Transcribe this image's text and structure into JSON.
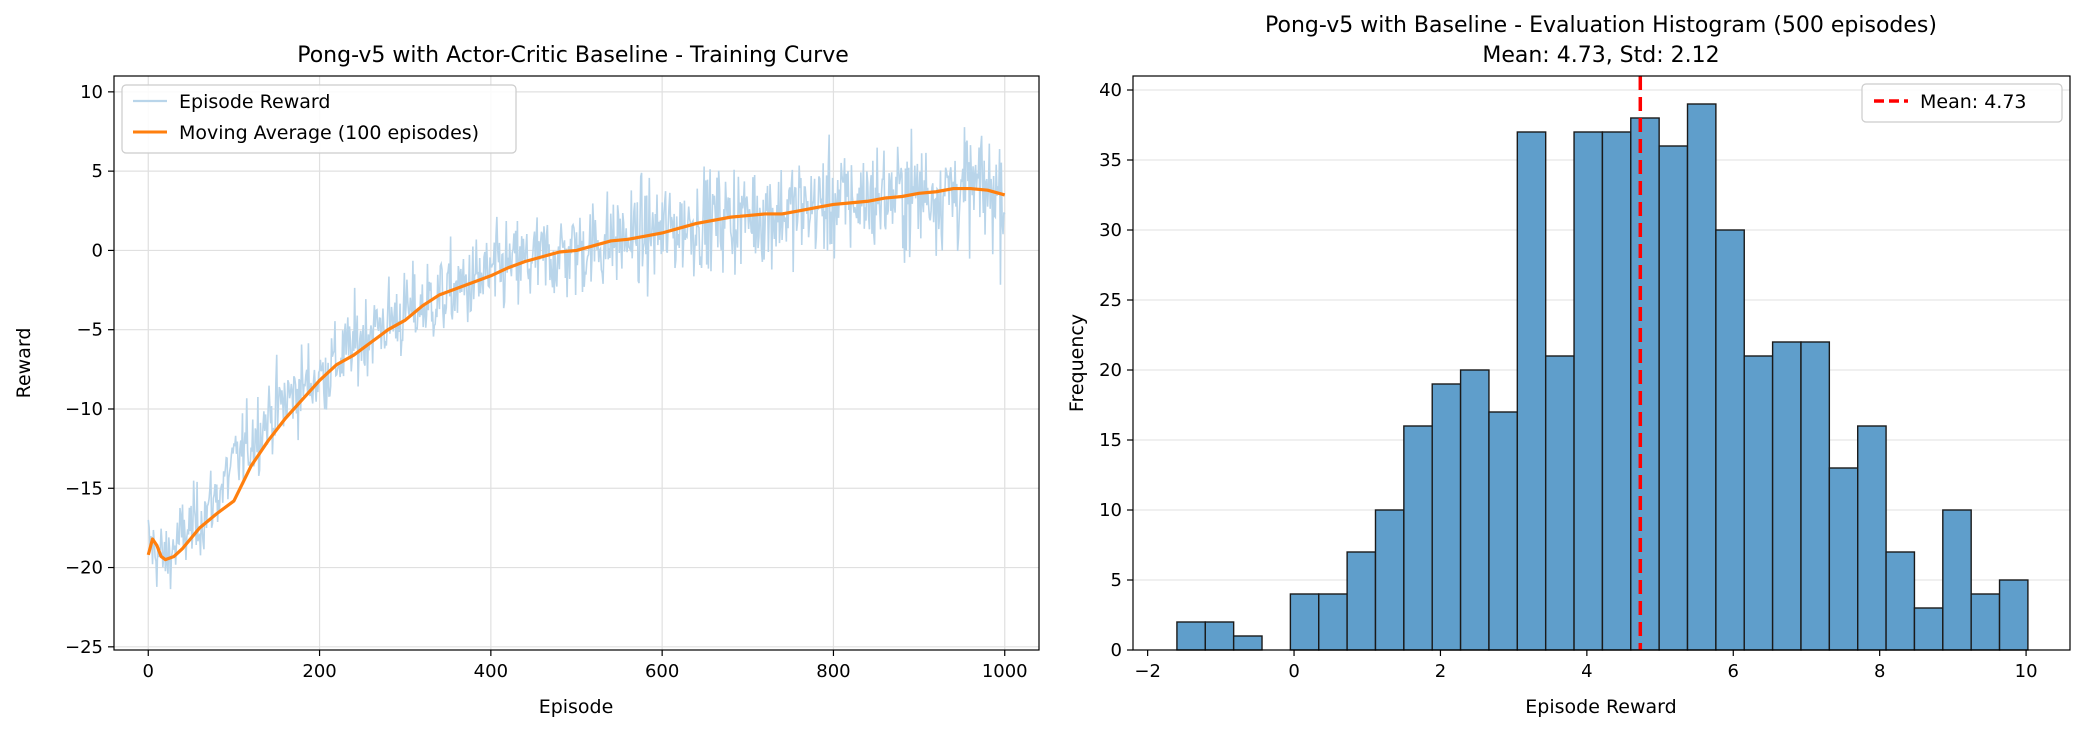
{
  "chart_data": [
    {
      "type": "line",
      "title": "Pong-v5 with Actor-Critic Baseline - Training Curve",
      "xlabel": "Episode",
      "ylabel": "Reward",
      "xlim": [
        -40,
        1040
      ],
      "ylim": [
        -25.2,
        11.0
      ],
      "xticks": [
        0,
        200,
        400,
        600,
        800,
        1000
      ],
      "yticks": [
        -25,
        -20,
        -15,
        -10,
        -5,
        0,
        5,
        10
      ],
      "grid": true,
      "legend_position": "upper-left",
      "series": [
        {
          "name": "Episode Reward",
          "color": "#b9d5ea",
          "x": [
            0,
            20,
            40,
            60,
            80,
            100,
            120,
            140,
            160,
            180,
            200,
            220,
            240,
            260,
            280,
            300,
            320,
            340,
            360,
            380,
            400,
            420,
            440,
            460,
            480,
            500,
            520,
            540,
            560,
            580,
            600,
            620,
            640,
            660,
            680,
            700,
            720,
            740,
            760,
            780,
            800,
            820,
            840,
            860,
            880,
            900,
            920,
            940,
            960,
            980,
            1000
          ],
          "y": [
            -18.5,
            -19.5,
            -18,
            -17,
            -15.5,
            -13.5,
            -12,
            -10.5,
            -9.5,
            -8.5,
            -8,
            -7,
            -6,
            -5,
            -4.5,
            -4,
            -3.5,
            -3,
            -2.5,
            -2,
            -1.5,
            -1,
            -0.8,
            -0.5,
            -0.3,
            0,
            0.3,
            0.6,
            0.8,
            1,
            1.2,
            1.5,
            1.8,
            2,
            2.1,
            2.2,
            2.3,
            2.4,
            2.6,
            2.8,
            3,
            3.1,
            3.3,
            3.4,
            3.5,
            3.6,
            3.7,
            3.8,
            3.9,
            3.8,
            3.6
          ]
        },
        {
          "name": "Moving Average (100 episodes)",
          "color": "#ff7f0e",
          "x": [
            0,
            5,
            10,
            15,
            20,
            30,
            40,
            60,
            80,
            100,
            120,
            140,
            160,
            180,
            200,
            220,
            240,
            260,
            280,
            300,
            320,
            340,
            360,
            380,
            400,
            420,
            440,
            460,
            480,
            500,
            520,
            540,
            560,
            580,
            600,
            620,
            640,
            660,
            680,
            700,
            720,
            740,
            760,
            780,
            800,
            820,
            840,
            860,
            880,
            900,
            920,
            940,
            960,
            980,
            1000
          ],
          "y": [
            -19.2,
            -18.2,
            -18.6,
            -19.3,
            -19.5,
            -19.3,
            -18.8,
            -17.5,
            -16.6,
            -15.8,
            -13.6,
            -12,
            -10.6,
            -9.4,
            -8.2,
            -7.2,
            -6.6,
            -5.8,
            -5,
            -4.4,
            -3.5,
            -2.8,
            -2.4,
            -2,
            -1.6,
            -1.1,
            -0.7,
            -0.4,
            -0.1,
            0,
            0.3,
            0.6,
            0.7,
            0.9,
            1.1,
            1.4,
            1.7,
            1.9,
            2.1,
            2.2,
            2.3,
            2.3,
            2.5,
            2.7,
            2.9,
            3.0,
            3.1,
            3.3,
            3.4,
            3.6,
            3.7,
            3.9,
            3.9,
            3.8,
            3.5
          ]
        }
      ]
    },
    {
      "type": "bar",
      "title": "Pong-v5 with Baseline - Evaluation Histogram (500 episodes)",
      "subtitle": "Mean: 4.73, Std: 2.12",
      "xlabel": "Episode Reward",
      "ylabel": "Frequency",
      "xlim": [
        -2.2,
        10.6
      ],
      "ylim": [
        0,
        41
      ],
      "xticks": [
        -2,
        0,
        2,
        4,
        6,
        8,
        10
      ],
      "yticks": [
        0,
        5,
        10,
        15,
        20,
        25,
        30,
        35,
        40
      ],
      "grid": true,
      "legend_position": "upper-right",
      "bar_color": "#5f9ecb",
      "bin_width": 0.3875,
      "bin_start": -1.6,
      "values": [
        2,
        2,
        1,
        0,
        4,
        4,
        7,
        10,
        16,
        19,
        20,
        17,
        37,
        21,
        37,
        37,
        38,
        36,
        39,
        30,
        21,
        22,
        22,
        13,
        16,
        7,
        3,
        10,
        4,
        5
      ],
      "mean_line": {
        "value": 4.73,
        "label": "Mean: 4.73",
        "color": "#ff0000"
      }
    }
  ]
}
